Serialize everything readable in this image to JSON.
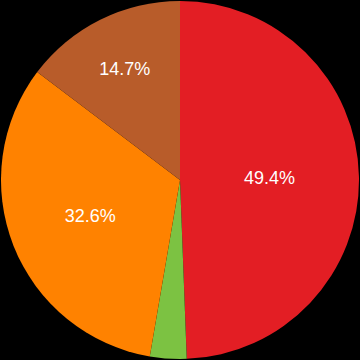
{
  "chart_data": {
    "type": "pie",
    "values": [
      49.4,
      3.3,
      32.6,
      14.7
    ],
    "value_labels": [
      "49.4%",
      null,
      "32.6%",
      "14.7%"
    ],
    "colors": [
      "#e31e24",
      "#7cc242",
      "#ff8200",
      "#b85c2a"
    ],
    "data_labels": true
  }
}
